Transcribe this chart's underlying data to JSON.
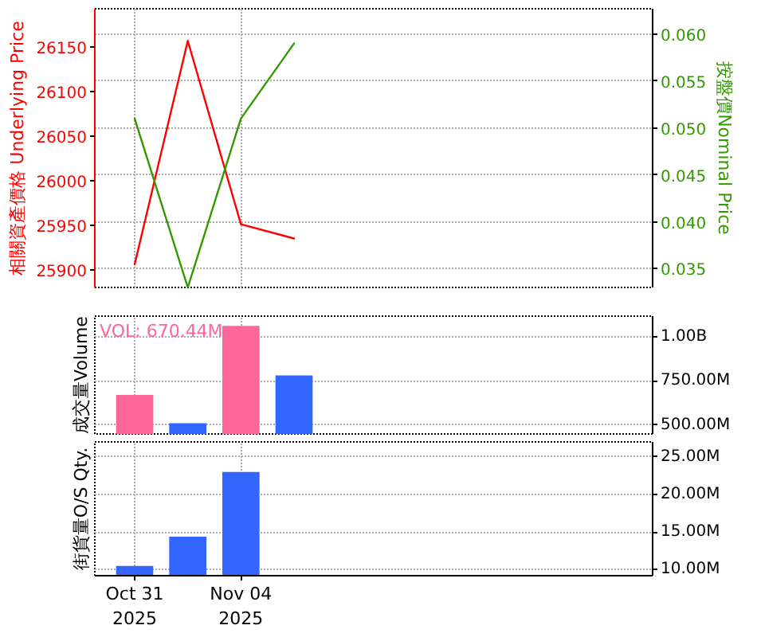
{
  "chart_data": [
    {
      "type": "line",
      "ylabel": "相關資產價格 Underlying Price",
      "y2label": "按盤價Nominal Price",
      "categories": [
        null,
        null,
        null,
        null,
        null,
        null,
        null,
        null,
        null,
        null
      ],
      "series": [
        {
          "color": "#ff0000",
          "values": [
            25906,
            26157,
            25951,
            25935,
            null,
            null,
            null,
            null,
            null,
            null
          ]
        },
        {
          "color": "#339900",
          "axis": "y2",
          "values": [
            0.051,
            0.033,
            0.051,
            0.059,
            null,
            null,
            null,
            null,
            null,
            null
          ]
        }
      ],
      "ylim": [
        25880,
        26193
      ],
      "yticks": [
        25900,
        25950,
        26000,
        26050,
        26100,
        26150
      ],
      "y2lim": [
        0.033,
        0.0627
      ],
      "y2ticks": [
        0.035,
        {
          "value": 0.04,
          "label": "0.040"
        },
        0.045,
        {
          "value": 0.05,
          "label": "0.050"
        },
        0.055,
        {
          "value": 0.06,
          "label": "0.060"
        }
      ],
      "grid": true,
      "tick_labels": "y"
    },
    {
      "type": "bar",
      "ylabel": "成交量Volume",
      "annotations": [
        "VOL: 670.44M"
      ],
      "categories": [
        null,
        null,
        null,
        null,
        null,
        null,
        null,
        null,
        null,
        null
      ],
      "series": [
        {
          "axis": "y2",
          "colors": [
            "#ff6699",
            "#3366ff",
            "#ff6699",
            "#3366ff",
            null,
            null,
            null,
            null,
            null,
            null
          ],
          "values": [
            670000000,
            510000000,
            1060000000,
            780000000,
            null,
            null,
            null,
            null,
            null,
            null
          ]
        }
      ],
      "y2lim": [
        449000000,
        1115000000
      ],
      "y2ticks": [
        {
          "value": 500000000,
          "label": "500.00M"
        },
        {
          "value": 750000000,
          "label": "750.00M"
        },
        {
          "value": 1000000000,
          "label": "1.00B"
        }
      ],
      "grid": true,
      "tick_labels": "y"
    },
    {
      "type": "bar",
      "ylabel": "街貨量O/S Qty.",
      "categories": [
        "Oct 31\n2025",
        null,
        "Nov 04\n2025",
        null,
        null,
        null,
        null,
        null,
        null,
        null
      ],
      "series": [
        {
          "axis": "y2",
          "color": "#3366ff",
          "values": [
            10500000,
            14400000,
            23000000,
            null,
            null,
            null,
            null,
            null,
            null,
            null
          ]
        }
      ],
      "y2lim": [
        9200000,
        27000000
      ],
      "y2ticks": [
        {
          "value": 10000000,
          "label": "10.00M"
        },
        {
          "value": 15000000,
          "label": "15.00M"
        },
        {
          "value": 20000000,
          "label": "20.00M"
        },
        {
          "value": 25000000,
          "label": "25.00M"
        }
      ],
      "grid": true
    }
  ]
}
